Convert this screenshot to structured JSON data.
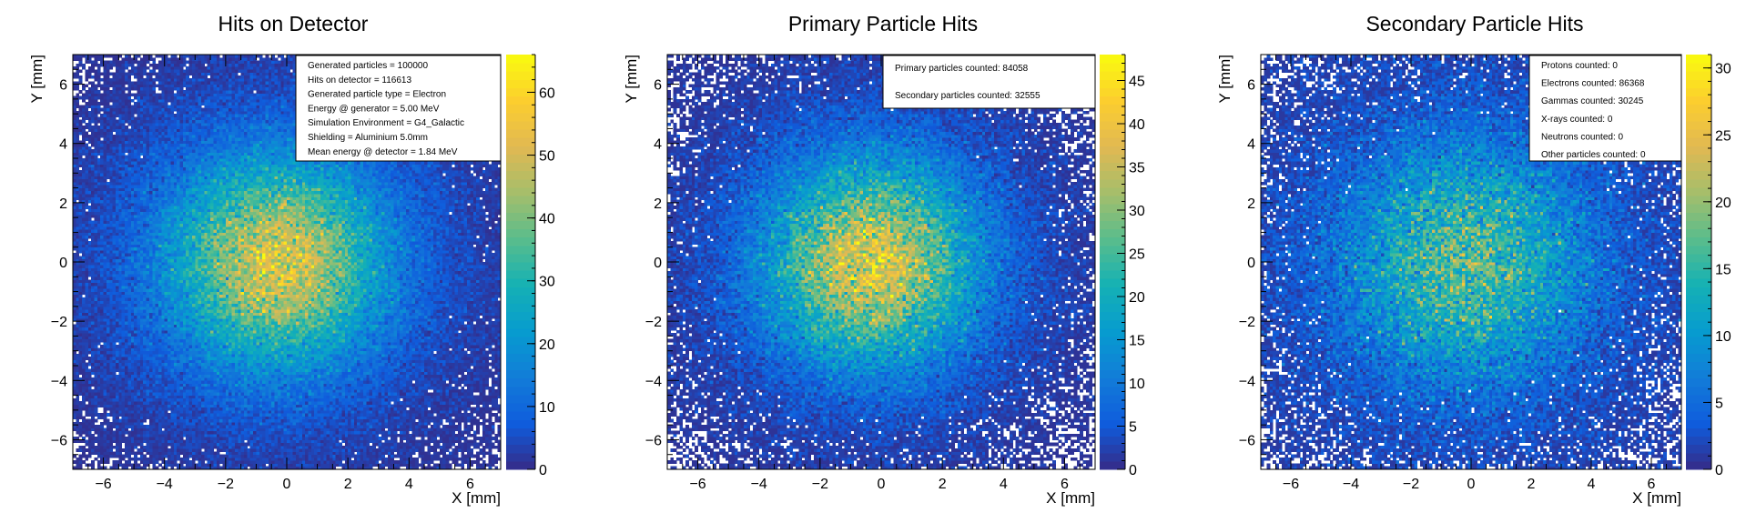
{
  "chart_data": [
    {
      "type": "heatmap",
      "title": "Hits on Detector",
      "xlabel": "X [mm]",
      "ylabel": "Y [mm]",
      "xlim": [
        -7,
        7
      ],
      "ylim": [
        -7,
        7
      ],
      "xticks": [
        -6,
        -4,
        -2,
        0,
        2,
        4,
        6
      ],
      "yticks": [
        -6,
        -4,
        -2,
        0,
        2,
        4,
        6
      ],
      "bins": 140,
      "colorbar": {
        "min": 0,
        "max": 66,
        "ticks": [
          0,
          10,
          20,
          30,
          40,
          50,
          60
        ]
      },
      "distribution": {
        "shape": "gaussian",
        "center": [
          -0.3,
          0.0
        ],
        "sigma": 2.3,
        "sigma_tail": 4.5,
        "peak": 52,
        "tail_fraction": 0.16
      },
      "stats_box": [
        "Generated particles = 100000",
        "Hits on detector = 116613",
        "Generated particle type = Electron",
        "Energy @ generator = 5.00 MeV",
        "Simulation Environment = G4_Galactic",
        "Shielding = Aluminium 5.0mm",
        "Mean energy @ detector = 1.84 MeV"
      ],
      "grid": false
    },
    {
      "type": "heatmap",
      "title": "Primary Particle Hits",
      "xlabel": "X [mm]",
      "ylabel": "Y [mm]",
      "xlim": [
        -7,
        7
      ],
      "ylim": [
        -7,
        7
      ],
      "xticks": [
        -6,
        -4,
        -2,
        0,
        2,
        4,
        6
      ],
      "yticks": [
        -6,
        -4,
        -2,
        0,
        2,
        4,
        6
      ],
      "bins": 140,
      "colorbar": {
        "min": 0,
        "max": 48,
        "ticks": [
          0,
          5,
          10,
          15,
          20,
          25,
          30,
          35,
          40,
          45
        ]
      },
      "distribution": {
        "shape": "gaussian",
        "center": [
          -0.3,
          0.0
        ],
        "sigma": 2.25,
        "sigma_tail": 4.3,
        "peak": 38,
        "tail_fraction": 0.15
      },
      "stats_box": [
        "Primary particles counted: 84058",
        "Secondary particles counted: 32555"
      ],
      "grid": false
    },
    {
      "type": "heatmap",
      "title": "Secondary Particle Hits",
      "xlabel": "X [mm]",
      "ylabel": "Y [mm]",
      "xlim": [
        -7,
        7
      ],
      "ylim": [
        -7,
        7
      ],
      "xticks": [
        -6,
        -4,
        -2,
        0,
        2,
        4,
        6
      ],
      "yticks": [
        -6,
        -4,
        -2,
        0,
        2,
        4,
        6
      ],
      "bins": 140,
      "colorbar": {
        "min": 0,
        "max": 31,
        "ticks": [
          0,
          5,
          10,
          15,
          20,
          25,
          30
        ]
      },
      "distribution": {
        "shape": "gaussian",
        "center": [
          -0.2,
          0.0
        ],
        "sigma": 2.6,
        "sigma_tail": 5.2,
        "peak": 17,
        "tail_fraction": 0.2
      },
      "stats_box": [
        "Protons counted: 0",
        "Electrons counted: 86368",
        "Gammas counted: 30245",
        "X-rays counted: 0",
        "Neutrons counted: 0",
        "Other particles counted: 0"
      ],
      "grid": false
    }
  ]
}
